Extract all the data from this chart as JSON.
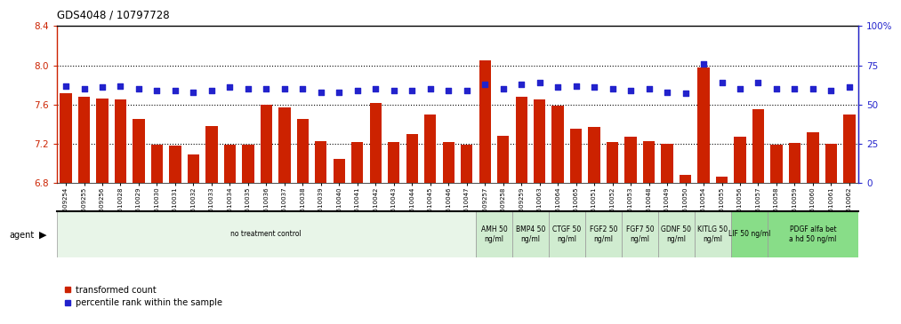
{
  "title": "GDS4048 / 10797728",
  "categories": [
    "GSM509254",
    "GSM509255",
    "GSM509256",
    "GSM510028",
    "GSM510029",
    "GSM510030",
    "GSM510031",
    "GSM510032",
    "GSM510033",
    "GSM510034",
    "GSM510035",
    "GSM510036",
    "GSM510037",
    "GSM510038",
    "GSM510039",
    "GSM510040",
    "GSM510041",
    "GSM510042",
    "GSM510043",
    "GSM510044",
    "GSM510045",
    "GSM510046",
    "GSM510047",
    "GSM509257",
    "GSM509258",
    "GSM509259",
    "GSM510063",
    "GSM510064",
    "GSM510065",
    "GSM510051",
    "GSM510052",
    "GSM510053",
    "GSM510048",
    "GSM510049",
    "GSM510050",
    "GSM510054",
    "GSM510055",
    "GSM510056",
    "GSM510057",
    "GSM510058",
    "GSM510059",
    "GSM510060",
    "GSM510061",
    "GSM510062"
  ],
  "bar_values": [
    7.72,
    7.68,
    7.66,
    7.65,
    7.45,
    7.19,
    7.18,
    7.09,
    7.38,
    7.19,
    7.19,
    7.6,
    7.57,
    7.45,
    7.23,
    7.05,
    7.22,
    7.62,
    7.22,
    7.3,
    7.5,
    7.22,
    7.19,
    8.05,
    7.28,
    7.68,
    7.65,
    7.59,
    7.35,
    7.37,
    7.22,
    7.27,
    7.23,
    7.2,
    6.88,
    7.98,
    6.87,
    7.27,
    7.55,
    7.19,
    7.21,
    7.32,
    7.2,
    7.5
  ],
  "dot_values_pct": [
    62,
    60,
    61,
    62,
    60,
    59,
    59,
    58,
    59,
    61,
    60,
    60,
    60,
    60,
    58,
    58,
    59,
    60,
    59,
    59,
    60,
    59,
    59,
    63,
    60,
    63,
    64,
    61,
    62,
    61,
    60,
    59,
    60,
    58,
    57,
    76,
    64,
    60,
    64,
    60,
    60,
    60,
    59,
    61
  ],
  "ylim_left": [
    6.8,
    8.4
  ],
  "ylim_right": [
    0,
    100
  ],
  "yticks_left": [
    6.8,
    7.2,
    7.6,
    8.0,
    8.4
  ],
  "yticks_right": [
    0,
    25,
    50,
    75,
    100
  ],
  "bar_color": "#CC2200",
  "dot_color": "#2222CC",
  "agent_groups": [
    {
      "label": "no treatment control",
      "start": 0,
      "end": 23,
      "color": "#e8f5e8"
    },
    {
      "label": "AMH 50\nng/ml",
      "start": 23,
      "end": 25,
      "color": "#d0ecd0"
    },
    {
      "label": "BMP4 50\nng/ml",
      "start": 25,
      "end": 27,
      "color": "#d0ecd0"
    },
    {
      "label": "CTGF 50\nng/ml",
      "start": 27,
      "end": 29,
      "color": "#d0ecd0"
    },
    {
      "label": "FGF2 50\nng/ml",
      "start": 29,
      "end": 31,
      "color": "#d0ecd0"
    },
    {
      "label": "FGF7 50\nng/ml",
      "start": 31,
      "end": 33,
      "color": "#d0ecd0"
    },
    {
      "label": "GDNF 50\nng/ml",
      "start": 33,
      "end": 35,
      "color": "#d0ecd0"
    },
    {
      "label": "KITLG 50\nng/ml",
      "start": 35,
      "end": 37,
      "color": "#d0ecd0"
    },
    {
      "label": "LIF 50 ng/ml",
      "start": 37,
      "end": 39,
      "color": "#88dd88"
    },
    {
      "label": "PDGF alfa bet\na hd 50 ng/ml",
      "start": 39,
      "end": 44,
      "color": "#88dd88"
    }
  ]
}
